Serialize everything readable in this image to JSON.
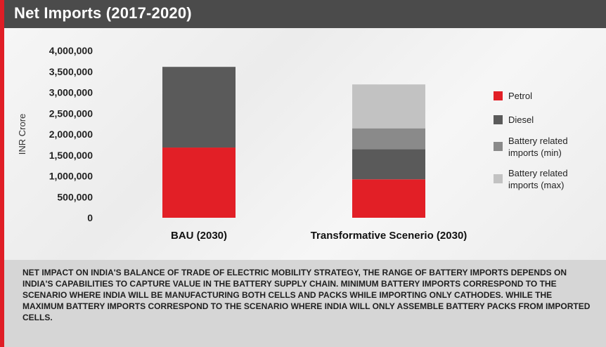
{
  "header": {
    "title": "Net Imports (2017-2020)"
  },
  "chart_data": {
    "type": "bar",
    "stacked": true,
    "categories": [
      "BAU (2030)",
      "Transformative Scenerio (2030)"
    ],
    "ylabel": "INR Crore",
    "ylim": [
      0,
      4000000
    ],
    "yticks": [
      "4,000,000",
      "3,500,000",
      "3,000,000",
      "2,500,000",
      "2,000,000",
      "1,500,000",
      "1,000,000",
      "500,000",
      "0"
    ],
    "ytick_values": [
      4000000,
      3500000,
      3000000,
      2500000,
      2000000,
      1500000,
      1000000,
      500000,
      0
    ],
    "grid": false,
    "legend_position": "right",
    "series": [
      {
        "name": "Petrol",
        "color": "#e21f26",
        "values": [
          1680000,
          920000
        ]
      },
      {
        "name": "Diesel",
        "color": "#5a5a5a",
        "values": [
          1930000,
          720000
        ]
      },
      {
        "name": "Battery related imports (min)",
        "color": "#8a8a8a",
        "values": [
          0,
          500000
        ]
      },
      {
        "name": "Battery related imports (max)",
        "color": "#c2c2c2",
        "values": [
          0,
          1050000
        ]
      }
    ]
  },
  "legend": {
    "items": [
      {
        "label_line1": "Petrol",
        "label_line2": "",
        "color": "#e21f26"
      },
      {
        "label_line1": "Diesel",
        "label_line2": "",
        "color": "#5a5a5a"
      },
      {
        "label_line1": "Battery related",
        "label_line2": "imports (min)",
        "color": "#8a8a8a"
      },
      {
        "label_line1": "Battery related",
        "label_line2": "imports (max)",
        "color": "#c2c2c2"
      }
    ]
  },
  "footer": {
    "note": "Net impact on India's balance of trade of electric mobility strategy, the range of battery imports depends on India's capabilities to capture value in the battery supply chain. Minimum battery imports correspond to the scenario where India will be manufacturing both cells and packs while importing only cathodes. While the maximum battery imports correspond to the scenario where India will only assemble battery packs from imported cells."
  }
}
